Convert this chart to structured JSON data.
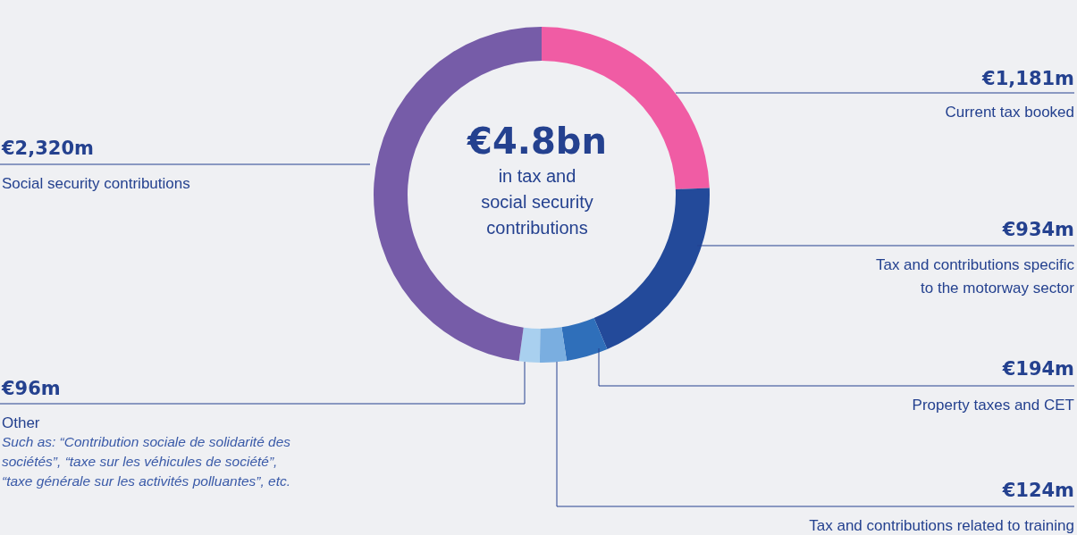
{
  "chart_data": {
    "type": "donut",
    "title": "€4.8bn",
    "subtitle": "in tax and social security contributions",
    "categories": [
      "Current tax booked",
      "Tax and contributions specific to the motorway sector",
      "Property taxes and CET",
      "Tax and contributions related to training",
      "Other",
      "Social security contributions"
    ],
    "values": [
      1181,
      934,
      194,
      124,
      96,
      2320
    ],
    "value_labels": [
      "€1,181m",
      "€934m",
      "€194m",
      "€124m",
      "€96m",
      "€2,320m"
    ],
    "colors": [
      "#f05ca4",
      "#234a9a",
      "#2f6fba",
      "#7aaee0",
      "#a9d0ef",
      "#765ca8"
    ],
    "annotations": [
      "Such as: “Contribution sociale de solidarité des sociétés”, “taxe sur les véhicules de société”, “taxe générale sur les activités polluantes”, etc."
    ],
    "legend": false
  }
}
